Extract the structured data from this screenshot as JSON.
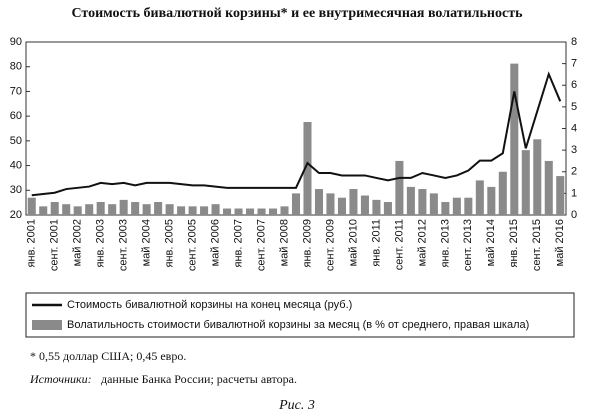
{
  "chart_data": {
    "type": "combo",
    "title": "Стоимость бивалютной корзины* и ее внутримесячная волатильность",
    "categories": [
      "янв. 2001",
      null,
      "сент. 2001",
      null,
      "май 2002",
      null,
      "янв. 2003",
      null,
      "сент. 2003",
      null,
      "май 2004",
      null,
      "янв. 2005",
      null,
      "сент. 2005",
      null,
      "май 2006",
      null,
      "янв. 2007",
      null,
      "сент. 2007",
      null,
      "май 2008",
      null,
      "янв. 2009",
      null,
      "сент. 2009",
      null,
      "май 2010",
      null,
      "янв. 2011",
      null,
      "сент. 2011",
      null,
      "май 2012",
      null,
      "янв. 2013",
      null,
      "сент. 2013",
      null,
      "май 2014",
      null,
      "янв. 2015",
      null,
      "сент. 2015",
      null,
      "май 2016"
    ],
    "series": [
      {
        "name": "Волатильность стоимости бивалютной корзины за месяц (в % от среднего, правая шкала)",
        "type": "bar",
        "axis": "y2",
        "color": "#8a8a8a",
        "values": [
          0.8,
          0.4,
          0.6,
          0.5,
          0.4,
          0.5,
          0.6,
          0.5,
          0.7,
          0.6,
          0.5,
          0.6,
          0.5,
          0.4,
          0.4,
          0.4,
          0.5,
          0.3,
          0.3,
          0.3,
          0.3,
          0.3,
          0.4,
          1.0,
          4.3,
          1.2,
          1.0,
          0.8,
          1.2,
          0.9,
          0.7,
          0.6,
          2.5,
          1.3,
          1.2,
          1.0,
          0.6,
          0.8,
          0.8,
          1.6,
          1.3,
          2.0,
          7.0,
          3.0,
          3.5,
          2.5,
          1.8
        ]
      },
      {
        "name": "Стоимость бивалютной корзины на конец месяца (руб.)",
        "type": "line",
        "color": "#111111",
        "values": [
          28,
          28.5,
          29,
          30.5,
          31,
          31.5,
          33,
          32.5,
          33,
          32,
          33,
          33,
          33,
          32.5,
          32,
          32,
          31.5,
          31,
          31,
          31,
          31,
          31,
          31,
          31,
          41,
          37,
          37,
          36,
          36,
          36,
          35,
          34,
          35,
          35,
          37,
          36,
          35,
          36,
          38,
          42,
          42,
          45,
          70,
          47,
          62,
          77,
          66
        ]
      }
    ],
    "ylim": [
      20,
      90
    ],
    "yticks": [
      20,
      30,
      40,
      50,
      60,
      70,
      80,
      90
    ],
    "y2lim": [
      0,
      8
    ],
    "y2ticks": [
      0,
      1,
      2,
      3,
      4,
      5,
      6,
      7,
      8
    ]
  },
  "footnote": "* 0,55 доллар США; 0,45 евро.",
  "sources_label": "Источники:",
  "sources_text": "данные Банка России; расчеты автора.",
  "caption": "Рис. 3"
}
